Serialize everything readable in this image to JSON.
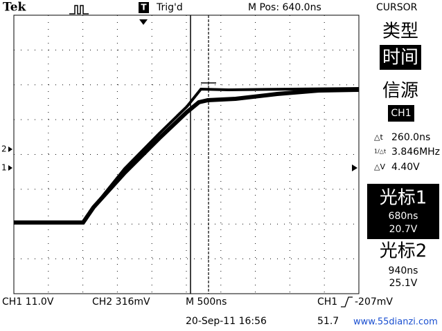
{
  "header": {
    "brand": "Tek",
    "trigger_marker": "T",
    "trigger_status": "Trig'd",
    "position": "M Pos: 640.0ns",
    "menu_title": "CURSOR"
  },
  "menu": {
    "type_label": "类型",
    "type_value": "时间",
    "source_label": "信源",
    "source_value": "CH1",
    "delta_t": "260.0ns",
    "inv_delta_t": "3.846MHz",
    "delta_v": "4.40V",
    "cursor1": {
      "label": "光标1",
      "time": "680ns",
      "volt": "20.7V"
    },
    "cursor2": {
      "label": "光标2",
      "time": "940ns",
      "volt": "25.1V"
    }
  },
  "markers": {
    "ch2": "2",
    "ch1": "1"
  },
  "footer": {
    "ch1": "CH1  11.0V",
    "ch2": "CH2  316mV",
    "timebase": "M 500ns",
    "trigger_source": "CH1",
    "trigger_level": "-207mV",
    "datetime": "20-Sep-11 16:56",
    "frequency": "51.7"
  },
  "watermark": "www.55dianzi.com"
}
